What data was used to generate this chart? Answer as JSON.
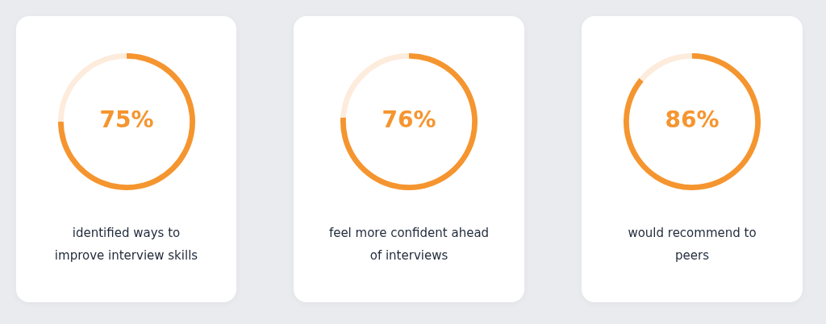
{
  "chart_data": [
    {
      "type": "donut",
      "categories": [
        null,
        null
      ],
      "values": [
        75,
        25
      ],
      "colors": [
        "#f5952f",
        "#fdebdc"
      ],
      "value_labels": [
        "75%",
        null
      ],
      "annotations": [
        "identified ways to improve interview skills"
      ]
    },
    {
      "type": "donut",
      "categories": [
        null,
        null
      ],
      "values": [
        76,
        24
      ],
      "colors": [
        "#f5952f",
        "#fdebdc"
      ],
      "value_labels": [
        "76%",
        null
      ],
      "annotations": [
        "feel more confident ahead of interviews"
      ]
    },
    {
      "type": "donut",
      "categories": [
        null,
        null
      ],
      "values": [
        86,
        14
      ],
      "colors": [
        "#f5952f",
        "#fdebdc"
      ],
      "value_labels": [
        "86%",
        null
      ],
      "annotations": [
        "would recommend to peers"
      ]
    }
  ]
}
